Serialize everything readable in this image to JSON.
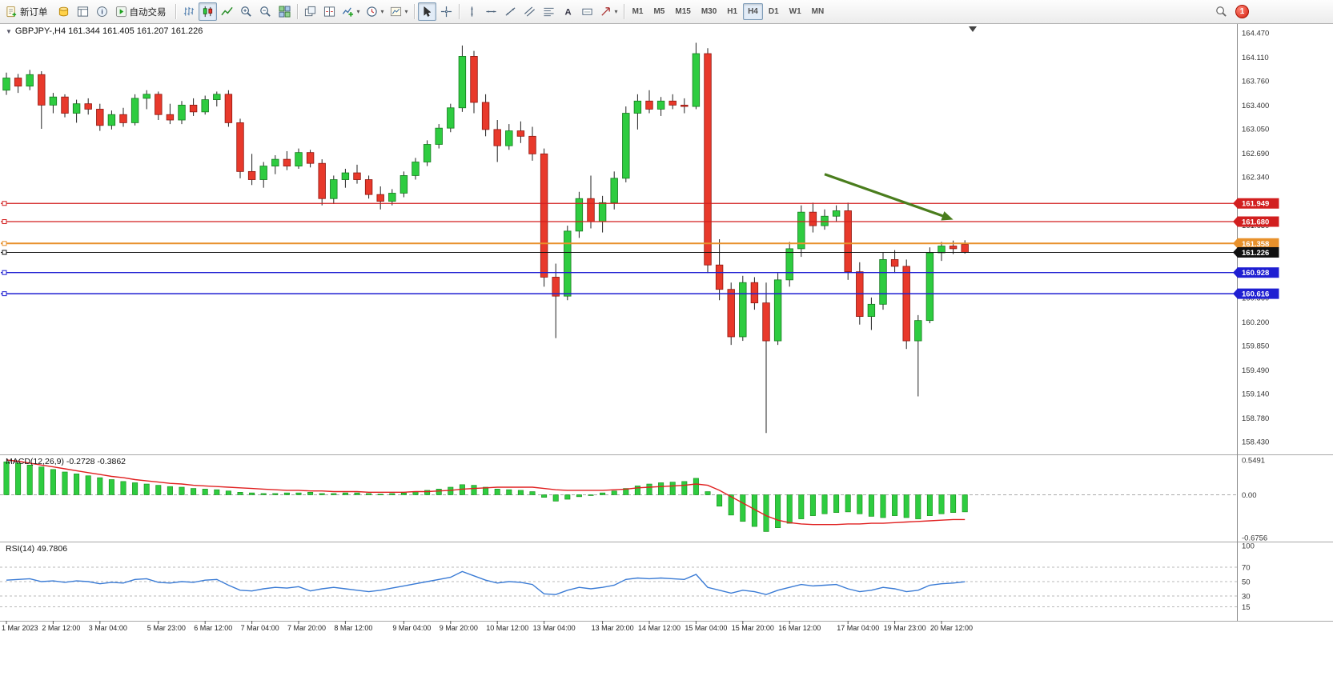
{
  "toolbar": {
    "new_order": "新订单",
    "auto_trading": "自动交易",
    "timeframes": [
      "M1",
      "M5",
      "M15",
      "M30",
      "H1",
      "H4",
      "D1",
      "W1",
      "MN"
    ],
    "active_timeframe": "H4",
    "notification_count": "1"
  },
  "chart": {
    "symbol_label": "GBPJPY-,H4 161.344 161.405 161.207 161.226",
    "price_axis_labels": [
      "164.470",
      "164.110",
      "163.760",
      "163.400",
      "163.050",
      "162.690",
      "162.340",
      "161.980",
      "161.630",
      "161.270",
      "160.920",
      "160.560",
      "160.200",
      "159.850",
      "159.490",
      "159.140",
      "158.780",
      "158.430"
    ],
    "price_max": 164.55,
    "price_min": 158.35,
    "hlines": [
      {
        "price": 161.949,
        "label": "161.949",
        "color": "#d21f1f",
        "width": 1.2
      },
      {
        "price": 161.68,
        "label": "161.680",
        "color": "#d21f1f",
        "width": 1.2
      },
      {
        "price": 161.358,
        "label": "161.358",
        "color": "#e8912c",
        "width": 2
      },
      {
        "price": 161.226,
        "label": "161.226",
        "color": "#111111",
        "width": 1
      },
      {
        "price": 160.928,
        "label": "160.928",
        "color": "#1f1fd2",
        "width": 1.4
      },
      {
        "price": 160.616,
        "label": "160.616",
        "color": "#1f1fd2",
        "width": 1.4
      }
    ],
    "arrow": {
      "from_index": 70,
      "from_price": 162.38,
      "to_index": 81,
      "to_price": 161.71,
      "color": "#4a7d1d"
    },
    "colors": {
      "bull": "#2ecc40",
      "bull_border": "#157a1e",
      "bear": "#e8392b",
      "bear_border": "#8f1710",
      "wick": "#222222"
    }
  },
  "chart_data": {
    "type": "candlestick",
    "symbol": "GBPJPY-",
    "timeframe": "H4",
    "time_labels": [
      "1 Mar 2023",
      "2 Mar 12:00",
      "3 Mar 04:00",
      "5 Mar 23:00",
      "6 Mar 12:00",
      "7 Mar 04:00",
      "7 Mar 20:00",
      "8 Mar 12:00",
      "9 Mar 04:00",
      "9 Mar 20:00",
      "10 Mar 12:00",
      "13 Mar 04:00",
      "13 Mar 20:00",
      "14 Mar 12:00",
      "15 Mar 04:00",
      "15 Mar 20:00",
      "16 Mar 12:00",
      "17 Mar 04:00",
      "19 Mar 23:00",
      "20 Mar 12:00"
    ],
    "ohlc": [
      [
        163.62,
        163.88,
        163.55,
        163.8
      ],
      [
        163.8,
        163.86,
        163.58,
        163.68
      ],
      [
        163.68,
        163.92,
        163.62,
        163.85
      ],
      [
        163.85,
        163.9,
        163.05,
        163.4
      ],
      [
        163.4,
        163.58,
        163.28,
        163.52
      ],
      [
        163.52,
        163.56,
        163.22,
        163.28
      ],
      [
        163.28,
        163.48,
        163.14,
        163.42
      ],
      [
        163.42,
        163.5,
        163.26,
        163.34
      ],
      [
        163.34,
        163.42,
        163.02,
        163.1
      ],
      [
        163.1,
        163.32,
        163.04,
        163.26
      ],
      [
        163.26,
        163.36,
        163.08,
        163.14
      ],
      [
        163.14,
        163.56,
        163.1,
        163.5
      ],
      [
        163.5,
        163.62,
        163.34,
        163.56
      ],
      [
        163.56,
        163.6,
        163.18,
        163.26
      ],
      [
        163.26,
        163.42,
        163.12,
        163.18
      ],
      [
        163.18,
        163.46,
        163.12,
        163.4
      ],
      [
        163.4,
        163.5,
        163.24,
        163.3
      ],
      [
        163.3,
        163.54,
        163.26,
        163.48
      ],
      [
        163.48,
        163.6,
        163.38,
        163.56
      ],
      [
        163.56,
        163.62,
        163.08,
        163.14
      ],
      [
        163.14,
        163.2,
        162.32,
        162.42
      ],
      [
        162.42,
        162.68,
        162.22,
        162.3
      ],
      [
        162.3,
        162.56,
        162.18,
        162.5
      ],
      [
        162.5,
        162.66,
        162.38,
        162.6
      ],
      [
        162.6,
        162.72,
        162.44,
        162.5
      ],
      [
        162.5,
        162.76,
        162.46,
        162.7
      ],
      [
        162.7,
        162.74,
        162.48,
        162.54
      ],
      [
        162.54,
        162.6,
        161.92,
        162.02
      ],
      [
        162.02,
        162.36,
        161.94,
        162.3
      ],
      [
        162.3,
        162.46,
        162.18,
        162.4
      ],
      [
        162.4,
        162.52,
        162.24,
        162.3
      ],
      [
        162.3,
        162.36,
        162.02,
        162.08
      ],
      [
        162.08,
        162.2,
        161.86,
        161.98
      ],
      [
        161.98,
        162.16,
        161.92,
        162.1
      ],
      [
        162.1,
        162.42,
        162.04,
        162.36
      ],
      [
        162.36,
        162.62,
        162.3,
        162.56
      ],
      [
        162.56,
        162.88,
        162.5,
        162.82
      ],
      [
        162.82,
        163.12,
        162.76,
        163.06
      ],
      [
        163.06,
        163.42,
        163.0,
        163.36
      ],
      [
        163.36,
        164.28,
        163.3,
        164.12
      ],
      [
        164.12,
        164.2,
        163.28,
        163.44
      ],
      [
        163.44,
        163.56,
        162.94,
        163.04
      ],
      [
        163.04,
        163.18,
        162.56,
        162.8
      ],
      [
        162.8,
        163.12,
        162.74,
        163.02
      ],
      [
        163.02,
        163.16,
        162.84,
        162.94
      ],
      [
        162.94,
        163.08,
        162.58,
        162.68
      ],
      [
        162.68,
        162.76,
        160.72,
        160.86
      ],
      [
        160.86,
        161.06,
        159.96,
        160.58
      ],
      [
        160.58,
        161.62,
        160.52,
        161.54
      ],
      [
        161.54,
        162.12,
        161.44,
        162.02
      ],
      [
        162.02,
        162.36,
        161.58,
        161.68
      ],
      [
        161.68,
        162.06,
        161.52,
        161.96
      ],
      [
        161.96,
        162.42,
        161.86,
        162.32
      ],
      [
        162.32,
        163.38,
        162.26,
        163.28
      ],
      [
        163.28,
        163.56,
        163.04,
        163.46
      ],
      [
        163.46,
        163.62,
        163.28,
        163.34
      ],
      [
        163.34,
        163.52,
        163.24,
        163.46
      ],
      [
        163.46,
        163.56,
        163.34,
        163.4
      ],
      [
        163.4,
        163.5,
        163.28,
        163.38
      ],
      [
        163.38,
        164.32,
        163.34,
        164.16
      ],
      [
        164.16,
        164.24,
        160.92,
        161.04
      ],
      [
        161.04,
        161.42,
        160.52,
        160.68
      ],
      [
        160.68,
        160.78,
        159.86,
        159.98
      ],
      [
        159.98,
        160.88,
        159.92,
        160.78
      ],
      [
        160.78,
        160.86,
        160.38,
        160.48
      ],
      [
        160.48,
        160.78,
        158.56,
        159.92
      ],
      [
        159.92,
        160.92,
        159.86,
        160.82
      ],
      [
        160.82,
        161.38,
        160.72,
        161.28
      ],
      [
        161.28,
        161.92,
        161.16,
        161.82
      ],
      [
        161.82,
        161.96,
        161.52,
        161.62
      ],
      [
        161.62,
        161.86,
        161.56,
        161.76
      ],
      [
        161.76,
        161.92,
        161.68,
        161.84
      ],
      [
        161.84,
        161.96,
        160.82,
        160.94
      ],
      [
        160.94,
        161.08,
        160.16,
        160.28
      ],
      [
        160.28,
        160.56,
        160.08,
        160.46
      ],
      [
        160.46,
        161.22,
        160.38,
        161.12
      ],
      [
        161.12,
        161.26,
        160.92,
        161.02
      ],
      [
        161.02,
        161.12,
        159.8,
        159.92
      ],
      [
        159.92,
        160.3,
        159.1,
        160.22
      ],
      [
        160.22,
        161.3,
        160.18,
        161.22
      ],
      [
        161.22,
        161.38,
        161.1,
        161.32
      ],
      [
        161.32,
        161.4,
        161.2,
        161.28
      ],
      [
        161.344,
        161.405,
        161.207,
        161.226
      ]
    ]
  },
  "macd": {
    "label": "MACD(12,26,9) -0.2728 -0.3862",
    "axis_labels": [
      "0.5491",
      "0.00",
      "-0.6756"
    ],
    "max": 0.5491,
    "min": -0.6756,
    "hist_color": "#2ecc40",
    "signal_color": "#e02020",
    "hist": [
      0.52,
      0.5,
      0.47,
      0.44,
      0.4,
      0.36,
      0.33,
      0.3,
      0.27,
      0.24,
      0.21,
      0.19,
      0.17,
      0.15,
      0.13,
      0.12,
      0.1,
      0.09,
      0.08,
      0.06,
      0.04,
      0.03,
      0.02,
      0.02,
      0.03,
      0.03,
      0.04,
      0.02,
      0.02,
      0.03,
      0.03,
      0.02,
      0.01,
      0.02,
      0.03,
      0.05,
      0.07,
      0.09,
      0.12,
      0.16,
      0.15,
      0.12,
      0.09,
      0.08,
      0.07,
      0.05,
      -0.04,
      -0.1,
      -0.07,
      -0.03,
      0.0,
      0.03,
      0.06,
      0.1,
      0.14,
      0.17,
      0.19,
      0.2,
      0.21,
      0.26,
      0.05,
      -0.18,
      -0.32,
      -0.42,
      -0.5,
      -0.58,
      -0.52,
      -0.45,
      -0.38,
      -0.33,
      -0.3,
      -0.28,
      -0.27,
      -0.3,
      -0.34,
      -0.36,
      -0.33,
      -0.36,
      -0.38,
      -0.33,
      -0.3,
      -0.28,
      -0.27
    ],
    "signal": [
      0.55,
      0.53,
      0.5,
      0.47,
      0.44,
      0.41,
      0.38,
      0.35,
      0.32,
      0.29,
      0.27,
      0.24,
      0.22,
      0.2,
      0.18,
      0.17,
      0.15,
      0.14,
      0.13,
      0.12,
      0.11,
      0.1,
      0.09,
      0.08,
      0.07,
      0.07,
      0.06,
      0.06,
      0.05,
      0.05,
      0.05,
      0.04,
      0.04,
      0.04,
      0.04,
      0.05,
      0.05,
      0.06,
      0.07,
      0.09,
      0.1,
      0.11,
      0.12,
      0.12,
      0.12,
      0.12,
      0.1,
      0.08,
      0.07,
      0.07,
      0.07,
      0.07,
      0.08,
      0.09,
      0.11,
      0.12,
      0.13,
      0.14,
      0.15,
      0.17,
      0.15,
      0.07,
      -0.03,
      -0.13,
      -0.23,
      -0.33,
      -0.4,
      -0.44,
      -0.46,
      -0.47,
      -0.47,
      -0.47,
      -0.46,
      -0.46,
      -0.45,
      -0.45,
      -0.44,
      -0.43,
      -0.42,
      -0.41,
      -0.4,
      -0.39,
      -0.39
    ]
  },
  "rsi": {
    "label": "RSI(14) 49.7806",
    "axis_labels": [
      "100",
      "70",
      "50",
      "30",
      "15"
    ],
    "levels": [
      70,
      50,
      30,
      15
    ],
    "max": 100,
    "min": 0,
    "line_color": "#3a7bd5",
    "values": [
      52,
      53,
      54,
      50,
      51,
      49,
      51,
      50,
      47,
      49,
      48,
      53,
      54,
      49,
      48,
      50,
      49,
      52,
      53,
      45,
      38,
      37,
      40,
      42,
      41,
      43,
      37,
      40,
      42,
      40,
      38,
      36,
      38,
      41,
      44,
      47,
      50,
      53,
      56,
      64,
      58,
      52,
      48,
      50,
      49,
      46,
      33,
      32,
      38,
      42,
      40,
      42,
      45,
      53,
      55,
      54,
      55,
      54,
      53,
      60,
      42,
      38,
      34,
      38,
      36,
      32,
      38,
      42,
      46,
      44,
      45,
      46,
      40,
      36,
      38,
      42,
      40,
      36,
      38,
      45,
      47,
      48,
      49.78
    ]
  }
}
